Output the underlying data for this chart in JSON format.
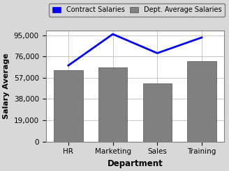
{
  "categories": [
    "HR",
    "Marketing",
    "Sales",
    "Training"
  ],
  "bar_values": [
    64000,
    66000,
    52000,
    72000
  ],
  "line_values": [
    68000,
    96000,
    79000,
    93000
  ],
  "bar_color": "#808080",
  "line_color": "#0000FF",
  "legend_patch_color": "#0000FF",
  "xlabel": "Department",
  "ylabel": "Salary Average",
  "yticks": [
    0,
    19000,
    38000,
    57000,
    76000,
    95000
  ],
  "ylim": [
    0,
    99000
  ],
  "legend_bar_label": "Dept. Average Salaries",
  "legend_line_label": "Contract Salaries",
  "bg_color": "#D8D8D8",
  "plot_bg_color": "#FFFFFF",
  "bar_edge_color": "#505050",
  "grid_color": "#C0C0C0",
  "line_width": 2.0,
  "bar_width": 0.65
}
